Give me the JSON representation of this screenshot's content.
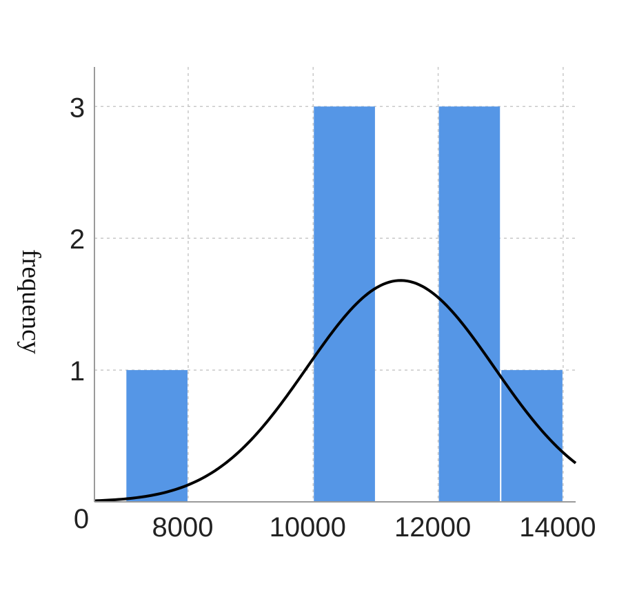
{
  "chart_data": {
    "type": "bar",
    "ylabel": "frequency",
    "xlabel": "",
    "title": "",
    "xlim": [
      6500,
      14200
    ],
    "ylim": [
      0,
      3.3
    ],
    "x_ticks": [
      8000,
      10000,
      12000,
      14000
    ],
    "y_ticks": [
      1,
      2,
      3
    ],
    "origin_label": "0",
    "grid": true,
    "bins": [
      {
        "start": 7000,
        "end": 8000,
        "value": 1
      },
      {
        "start": 8000,
        "end": 9000,
        "value": 0
      },
      {
        "start": 9000,
        "end": 10000,
        "value": 0
      },
      {
        "start": 10000,
        "end": 11000,
        "value": 3
      },
      {
        "start": 11000,
        "end": 12000,
        "value": 0
      },
      {
        "start": 12000,
        "end": 13000,
        "value": 3
      },
      {
        "start": 13000,
        "end": 14000,
        "value": 1
      }
    ],
    "normal_curve": {
      "mean": 11400,
      "peak": 1.68,
      "sd": 1500
    },
    "colors": {
      "bar": "#5596e6",
      "curve": "#000000",
      "grid": "#c8c8c8"
    }
  }
}
